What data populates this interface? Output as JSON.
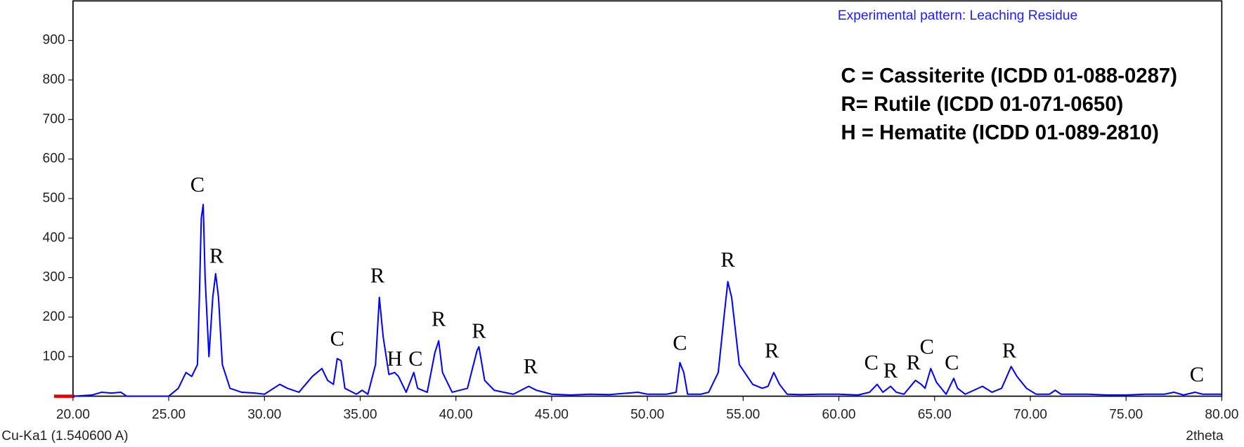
{
  "chart_data": {
    "type": "line",
    "title": "Experimental pattern: Leaching Residue",
    "x_label": "2theta",
    "source_label": "Cu-Ka1 (1.540600 A)",
    "legend_lines": [
      "C = Cassiterite (ICDD 01-088-0287)",
      "R= Rutile (ICDD 01-071-0650)",
      "H = Hematite (ICDD 01-089-2810)"
    ],
    "xlim": [
      20,
      80
    ],
    "ylim": [
      0,
      1000
    ],
    "xticks": [
      {
        "value": 20,
        "label": "20.00"
      },
      {
        "value": 25,
        "label": "25.00"
      },
      {
        "value": 30,
        "label": "30.00"
      },
      {
        "value": 35,
        "label": "35.00"
      },
      {
        "value": 40,
        "label": "40.00"
      },
      {
        "value": 45,
        "label": "45.00"
      },
      {
        "value": 50,
        "label": "50.00"
      },
      {
        "value": 55,
        "label": "55.00"
      },
      {
        "value": 60,
        "label": "60.00"
      },
      {
        "value": 65,
        "label": "65.00"
      },
      {
        "value": 70,
        "label": "70.00"
      },
      {
        "value": 75,
        "label": "75.00"
      },
      {
        "value": 80,
        "label": "80.00"
      }
    ],
    "yticks": [
      100,
      200,
      300,
      400,
      500,
      600,
      700,
      800,
      900
    ],
    "x": [
      20,
      21,
      21.5,
      22,
      22.5,
      22.8,
      25,
      25.5,
      25.9,
      26.2,
      26.5,
      26.6,
      26.7,
      26.8,
      26.9,
      27.1,
      27.3,
      27.45,
      27.6,
      27.8,
      28.2,
      28.8,
      29.5,
      30,
      30.8,
      31.2,
      31.8,
      32.5,
      33,
      33.3,
      33.6,
      33.8,
      34,
      34.2,
      34.8,
      35.1,
      35.4,
      35.8,
      36,
      36.2,
      36.5,
      36.8,
      37,
      37.4,
      37.8,
      38,
      38.5,
      38.9,
      39.1,
      39.3,
      39.8,
      40.6,
      41.1,
      41.2,
      41.5,
      42,
      42.5,
      43,
      43.8,
      44.2,
      45,
      46,
      47,
      48,
      49,
      49.5,
      50,
      51,
      51.5,
      51.7,
      51.9,
      52.1,
      52.8,
      53.2,
      53.7,
      54,
      54.2,
      54.4,
      54.8,
      55.5,
      56,
      56.3,
      56.6,
      56.9,
      57.3,
      58,
      59,
      60,
      61,
      61.6,
      62,
      62.3,
      62.7,
      63,
      63.4,
      64,
      64.3,
      64.5,
      64.8,
      65.1,
      65.6,
      66,
      66.2,
      66.6,
      67.5,
      68,
      68.5,
      69,
      69.3,
      69.8,
      70.3,
      71,
      71.3,
      71.6,
      73,
      74,
      75,
      76,
      77,
      77.5,
      78,
      78.6,
      79,
      80
    ],
    "series": [
      {
        "name": "Leaching Residue",
        "color": "#0000ff",
        "values": [
          0,
          3,
          10,
          8,
          10,
          0,
          0,
          20,
          60,
          50,
          80,
          250,
          450,
          485,
          300,
          100,
          250,
          310,
          250,
          80,
          20,
          10,
          8,
          5,
          30,
          20,
          10,
          50,
          70,
          40,
          30,
          95,
          90,
          20,
          5,
          15,
          5,
          80,
          250,
          150,
          55,
          60,
          50,
          10,
          60,
          20,
          10,
          110,
          140,
          60,
          10,
          20,
          115,
          125,
          40,
          15,
          10,
          5,
          25,
          15,
          5,
          3,
          5,
          4,
          8,
          10,
          5,
          5,
          10,
          85,
          60,
          5,
          5,
          10,
          60,
          200,
          290,
          250,
          80,
          30,
          20,
          25,
          60,
          30,
          5,
          4,
          5,
          5,
          3,
          10,
          30,
          10,
          25,
          10,
          5,
          40,
          30,
          20,
          70,
          35,
          5,
          45,
          20,
          5,
          25,
          10,
          20,
          75,
          50,
          20,
          5,
          5,
          15,
          5,
          5,
          3,
          3,
          5,
          5,
          10,
          3,
          10,
          5,
          5
        ]
      }
    ],
    "annotations": [
      {
        "text": "C",
        "x": 26.5,
        "y": 530
      },
      {
        "text": "R",
        "x": 27.5,
        "y": 350
      },
      {
        "text": "C",
        "x": 33.8,
        "y": 140
      },
      {
        "text": "R",
        "x": 35.9,
        "y": 300
      },
      {
        "text": "H",
        "x": 36.8,
        "y": 90
      },
      {
        "text": "C",
        "x": 37.9,
        "y": 90
      },
      {
        "text": "R",
        "x": 39.1,
        "y": 190
      },
      {
        "text": "R",
        "x": 41.2,
        "y": 160
      },
      {
        "text": "R",
        "x": 43.9,
        "y": 70
      },
      {
        "text": "C",
        "x": 51.7,
        "y": 130
      },
      {
        "text": "R",
        "x": 54.2,
        "y": 340
      },
      {
        "text": "R",
        "x": 56.5,
        "y": 110
      },
      {
        "text": "C",
        "x": 61.7,
        "y": 80
      },
      {
        "text": "R",
        "x": 62.7,
        "y": 60
      },
      {
        "text": "R",
        "x": 63.9,
        "y": 80
      },
      {
        "text": "C",
        "x": 64.6,
        "y": 120
      },
      {
        "text": "C",
        "x": 65.9,
        "y": 80
      },
      {
        "text": "R",
        "x": 68.9,
        "y": 110
      },
      {
        "text": "C",
        "x": 78.7,
        "y": 50
      }
    ]
  }
}
